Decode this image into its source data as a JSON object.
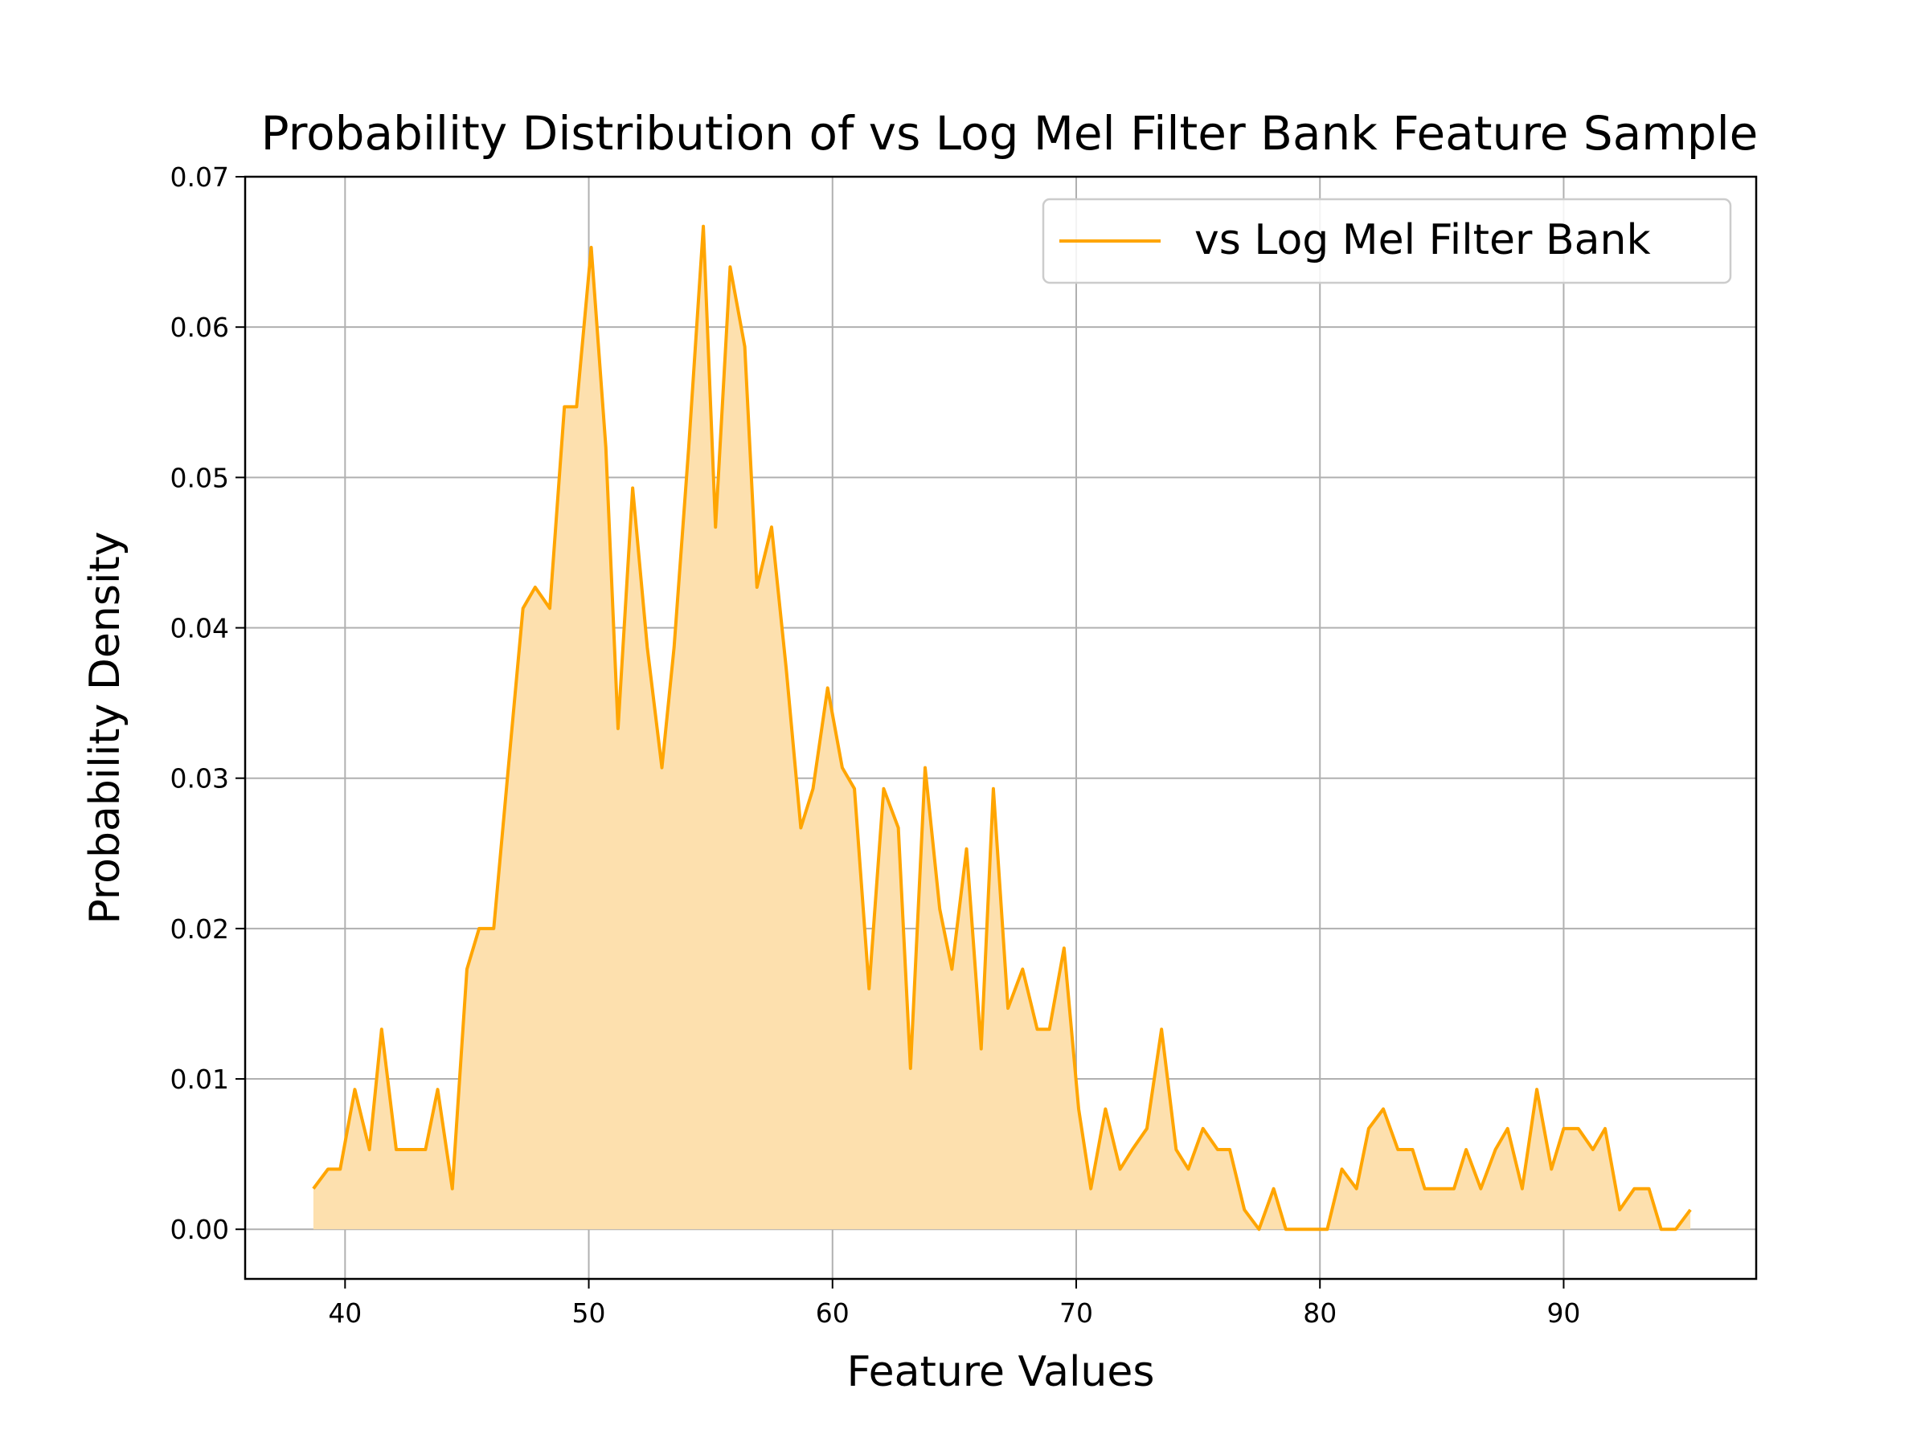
{
  "colors": {
    "series": "#FFA500",
    "fill": "#FDE0AE",
    "grid": "#B0B0B0",
    "axis": "#000000"
  },
  "chart_data": {
    "type": "area",
    "title": "Probability Distribution of vs Log Mel Filter Bank Feature Sample",
    "xlabel": "Feature Values",
    "ylabel": "Probability Density",
    "xlim": [
      35.9,
      97.9
    ],
    "ylim": [
      -0.0033,
      0.07
    ],
    "grid": true,
    "legend_position": "top-right",
    "xticks": [
      40,
      50,
      60,
      70,
      80,
      90
    ],
    "xtick_labels": [
      "40",
      "50",
      "60",
      "70",
      "80",
      "90"
    ],
    "yticks": [
      0.0,
      0.01,
      0.02,
      0.03,
      0.04,
      0.05,
      0.06,
      0.07
    ],
    "ytick_labels": [
      "0.00",
      "0.01",
      "0.02",
      "0.03",
      "0.04",
      "0.05",
      "0.06",
      "0.07"
    ],
    "series": [
      {
        "name": "vs Log Mel Filter Bank",
        "x": [
          38.7,
          39.3,
          39.8,
          40.4,
          41.0,
          41.5,
          42.1,
          42.7,
          43.3,
          43.8,
          44.4,
          45.0,
          45.5,
          46.1,
          46.7,
          47.3,
          47.8,
          48.4,
          49.0,
          49.5,
          50.1,
          50.7,
          51.2,
          51.8,
          52.4,
          53.0,
          53.5,
          54.1,
          54.7,
          55.2,
          55.8,
          56.4,
          56.9,
          57.5,
          58.1,
          58.7,
          59.2,
          59.8,
          60.4,
          60.9,
          61.5,
          62.1,
          62.7,
          63.2,
          63.8,
          64.4,
          64.9,
          65.5,
          66.1,
          66.6,
          67.2,
          67.8,
          68.4,
          68.9,
          69.5,
          70.1,
          70.6,
          71.2,
          71.8,
          72.3,
          72.9,
          73.5,
          74.1,
          74.6,
          75.2,
          75.8,
          76.3,
          76.9,
          77.5,
          78.1,
          78.6,
          79.2,
          79.8,
          80.3,
          80.9,
          81.5,
          82.0,
          82.6,
          83.2,
          83.8,
          84.3,
          84.9,
          85.5,
          86.0,
          86.6,
          87.2,
          87.7,
          88.3,
          88.9,
          89.5,
          90.0,
          90.6,
          91.2,
          91.7,
          92.3,
          92.9,
          93.5,
          94.0,
          94.6,
          95.2
        ],
        "y": [
          0.0027,
          0.004,
          0.004,
          0.0093,
          0.0053,
          0.0133,
          0.0053,
          0.0053,
          0.0053,
          0.0093,
          0.0027,
          0.0173,
          0.02,
          0.02,
          0.0307,
          0.0413,
          0.0427,
          0.0413,
          0.0547,
          0.0547,
          0.0653,
          0.052,
          0.0333,
          0.0493,
          0.0387,
          0.0307,
          0.0387,
          0.052,
          0.0667,
          0.0467,
          0.064,
          0.0587,
          0.0427,
          0.0467,
          0.0373,
          0.0267,
          0.0293,
          0.036,
          0.0307,
          0.0293,
          0.016,
          0.0293,
          0.0267,
          0.0107,
          0.0307,
          0.0213,
          0.0173,
          0.0253,
          0.012,
          0.0293,
          0.0147,
          0.0173,
          0.0133,
          0.0133,
          0.0187,
          0.008,
          0.0027,
          0.008,
          0.004,
          0.0053,
          0.0067,
          0.0133,
          0.0053,
          0.004,
          0.0067,
          0.0053,
          0.0053,
          0.0013,
          0.0,
          0.0027,
          0.0,
          0.0,
          0.0,
          0.0,
          0.004,
          0.0027,
          0.0067,
          0.008,
          0.0053,
          0.0053,
          0.0027,
          0.0027,
          0.0027,
          0.0053,
          0.0027,
          0.0053,
          0.0067,
          0.0027,
          0.0093,
          0.004,
          0.0067,
          0.0067,
          0.0053,
          0.0067,
          0.0013,
          0.0027,
          0.0027,
          0.0,
          0.0,
          0.0013
        ]
      }
    ]
  }
}
